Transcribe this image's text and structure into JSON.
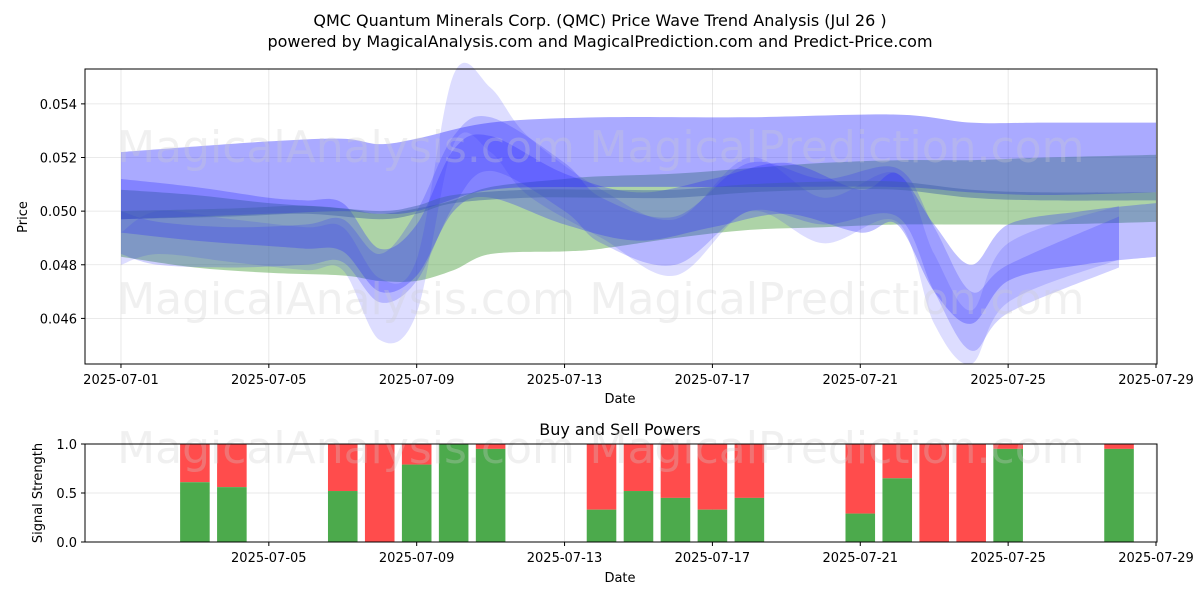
{
  "title_line1": "QMC Quantum Minerals Corp. (QMC) Price Wave Trend Analysis (Jul 26 )",
  "title_line2": "powered by MagicalAnalysis.com and MagicalPrediction.com and Predict-Price.com",
  "watermarks": [
    "MagicalAnalysis.com",
    "MagicalPrediction.com"
  ],
  "chart_data": [
    {
      "type": "area",
      "title": "",
      "xlabel": "Date",
      "ylabel": "Price",
      "xlim": [
        "2025-06-30",
        "2025-07-29"
      ],
      "ylim": [
        0.0443,
        0.0553
      ],
      "x_ticks": [
        "2025-07-01",
        "2025-07-05",
        "2025-07-09",
        "2025-07-13",
        "2025-07-17",
        "2025-07-21",
        "2025-07-25",
        "2025-07-29"
      ],
      "y_ticks": [
        0.046,
        0.048,
        0.05,
        0.052,
        0.054
      ],
      "grid": true,
      "bands": [
        {
          "color": "#4a9e3c",
          "opacity": 0.45,
          "x": [
            "2025-07-01",
            "2025-07-03",
            "2025-07-05",
            "2025-07-07",
            "2025-07-08",
            "2025-07-09",
            "2025-07-10",
            "2025-07-11",
            "2025-07-13",
            "2025-07-14",
            "2025-07-16",
            "2025-07-18",
            "2025-07-20",
            "2025-07-22",
            "2025-07-24",
            "2025-07-26",
            "2025-07-29"
          ],
          "upper": [
            0.0508,
            0.0506,
            0.0503,
            0.0501,
            0.0499,
            0.0501,
            0.0504,
            0.0509,
            0.0512,
            0.0513,
            0.0514,
            0.0516,
            0.0518,
            0.0519,
            0.0519,
            0.052,
            0.0521
          ],
          "lower": [
            0.0483,
            0.0479,
            0.0477,
            0.0476,
            0.0474,
            0.0474,
            0.0478,
            0.0484,
            0.0485,
            0.0486,
            0.049,
            0.0493,
            0.0494,
            0.0495,
            0.0495,
            0.0495,
            0.0496
          ]
        },
        {
          "color": "#2a2aff",
          "opacity": 0.4,
          "x": [
            "2025-07-01",
            "2025-07-05",
            "2025-07-07",
            "2025-07-08",
            "2025-07-09",
            "2025-07-11",
            "2025-07-14",
            "2025-07-18",
            "2025-07-22",
            "2025-07-24",
            "2025-07-26",
            "2025-07-29"
          ],
          "upper": [
            0.0522,
            0.0526,
            0.0527,
            0.0525,
            0.0527,
            0.0533,
            0.0535,
            0.0535,
            0.0536,
            0.0533,
            0.0533,
            0.0533
          ],
          "lower": [
            0.0497,
            0.0499,
            0.05,
            0.0499,
            0.05,
            0.0508,
            0.0509,
            0.0509,
            0.0509,
            0.0507,
            0.0506,
            0.0507
          ]
        },
        {
          "color": "#2a2aff",
          "opacity": 0.3,
          "x": [
            "2025-07-01",
            "2025-07-03",
            "2025-07-05",
            "2025-07-06",
            "2025-07-07",
            "2025-07-08",
            "2025-07-09",
            "2025-07-10",
            "2025-07-11",
            "2025-07-13",
            "2025-07-15",
            "2025-07-17",
            "2025-07-19",
            "2025-07-21",
            "2025-07-22",
            "2025-07-23",
            "2025-07-24",
            "2025-07-25",
            "2025-07-27",
            "2025-07-29"
          ],
          "upper": [
            0.0512,
            0.0509,
            0.0505,
            0.0504,
            0.0503,
            0.0486,
            0.0495,
            0.0523,
            0.0528,
            0.0514,
            0.0507,
            0.0512,
            0.0518,
            0.0508,
            0.0514,
            0.0495,
            0.048,
            0.0495,
            0.05,
            0.0503
          ],
          "lower": [
            0.0492,
            0.0489,
            0.0487,
            0.0486,
            0.0485,
            0.047,
            0.0476,
            0.05,
            0.0505,
            0.0495,
            0.0489,
            0.0494,
            0.0499,
            0.0492,
            0.0495,
            0.047,
            0.0458,
            0.0474,
            0.048,
            0.0483
          ]
        },
        {
          "color": "#2a2aff",
          "opacity": 0.22,
          "x": [
            "2025-07-01",
            "2025-07-02",
            "2025-07-04",
            "2025-07-06",
            "2025-07-07",
            "2025-07-08",
            "2025-07-09",
            "2025-07-10",
            "2025-07-11",
            "2025-07-13",
            "2025-07-14",
            "2025-07-16",
            "2025-07-18",
            "2025-07-20",
            "2025-07-22",
            "2025-07-23",
            "2025-07-24",
            "2025-07-25",
            "2025-07-28"
          ],
          "upper": [
            0.05,
            0.0496,
            0.0494,
            0.0495,
            0.0497,
            0.0484,
            0.05,
            0.0528,
            0.0535,
            0.0518,
            0.0505,
            0.0498,
            0.0518,
            0.0512,
            0.0516,
            0.0494,
            0.047,
            0.048,
            0.0498
          ],
          "lower": [
            0.0484,
            0.048,
            0.0479,
            0.048,
            0.0481,
            0.0466,
            0.0474,
            0.0502,
            0.0515,
            0.05,
            0.0488,
            0.048,
            0.05,
            0.0495,
            0.0498,
            0.047,
            0.0448,
            0.0462,
            0.0479
          ]
        },
        {
          "color": "#2a2aff",
          "opacity": 0.16,
          "x": [
            "2025-07-01",
            "2025-07-02",
            "2025-07-04",
            "2025-07-06",
            "2025-07-07",
            "2025-07-08",
            "2025-07-09",
            "2025-07-10",
            "2025-07-11",
            "2025-07-12",
            "2025-07-14",
            "2025-07-16",
            "2025-07-18",
            "2025-07-20",
            "2025-07-22",
            "2025-07-23",
            "2025-07-24",
            "2025-07-25",
            "2025-07-28"
          ],
          "upper": [
            0.0492,
            0.05,
            0.0497,
            0.0494,
            0.0494,
            0.0475,
            0.0482,
            0.0551,
            0.0546,
            0.0528,
            0.0508,
            0.0497,
            0.052,
            0.0505,
            0.0514,
            0.0484,
            0.0463,
            0.0488,
            0.0502
          ],
          "lower": [
            0.048,
            0.0484,
            0.0481,
            0.0478,
            0.0478,
            0.0452,
            0.0462,
            0.0525,
            0.0522,
            0.0506,
            0.049,
            0.0476,
            0.05,
            0.0488,
            0.0496,
            0.0458,
            0.0443,
            0.0466,
            0.0482
          ]
        },
        {
          "color": "#3d5fa8",
          "opacity": 0.45,
          "x": [
            "2025-07-01",
            "2025-07-04",
            "2025-07-06",
            "2025-07-08",
            "2025-07-09",
            "2025-07-10",
            "2025-07-12",
            "2025-07-14",
            "2025-07-16",
            "2025-07-18",
            "2025-07-20",
            "2025-07-22",
            "2025-07-24",
            "2025-07-26",
            "2025-07-29"
          ],
          "upper": [
            0.05,
            0.0501,
            0.0502,
            0.05,
            0.0502,
            0.0506,
            0.0508,
            0.0508,
            0.0508,
            0.051,
            0.0511,
            0.0511,
            0.0508,
            0.0507,
            0.0507
          ],
          "lower": [
            0.0497,
            0.0498,
            0.0499,
            0.0497,
            0.0499,
            0.0503,
            0.0505,
            0.0505,
            0.0505,
            0.0507,
            0.0508,
            0.0508,
            0.0505,
            0.0504,
            0.0504
          ]
        }
      ]
    },
    {
      "type": "bar",
      "title": "Buy and Sell Powers",
      "xlabel": "Date",
      "ylabel": "Signal Strength",
      "xlim": [
        "2025-06-30",
        "2025-07-29"
      ],
      "ylim": [
        0,
        1
      ],
      "x_ticks": [
        "2025-07-05",
        "2025-07-09",
        "2025-07-13",
        "2025-07-17",
        "2025-07-21",
        "2025-07-25",
        "2025-07-29"
      ],
      "y_ticks": [
        "0.0",
        "0.5",
        "1.0"
      ],
      "grid": true,
      "buy_color": "#4caa4c",
      "sell_color": "#ff4c4c",
      "dates": [
        "2025-07-03",
        "2025-07-04",
        "2025-07-07",
        "2025-07-08",
        "2025-07-09",
        "2025-07-10",
        "2025-07-11",
        "2025-07-14",
        "2025-07-15",
        "2025-07-16",
        "2025-07-17",
        "2025-07-18",
        "2025-07-21",
        "2025-07-22",
        "2025-07-23",
        "2025-07-24",
        "2025-07-25",
        "2025-07-28"
      ],
      "buy": [
        0.61,
        0.56,
        0.52,
        0.0,
        0.79,
        1.0,
        0.95,
        0.33,
        0.52,
        0.45,
        0.33,
        0.45,
        0.29,
        0.65,
        0.0,
        0.0,
        0.95,
        0.95
      ]
    }
  ]
}
